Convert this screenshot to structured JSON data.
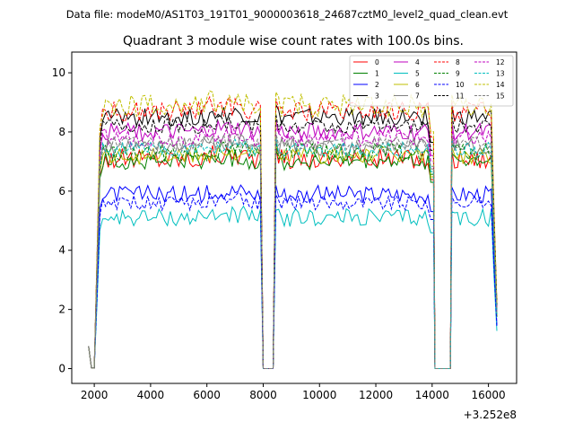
{
  "chart_data": {
    "type": "line",
    "suptitle": "Data file: modeM0/AS1T03_191T01_9000003618_24687cztM0_level2_quad_clean.evt",
    "title": "Quadrant 3 module wise count rates with 100.0s bins.",
    "xlabel": "",
    "ylabel": "",
    "x_offset_label": "+3.252e8",
    "xlim": [
      1200,
      17000
    ],
    "ylim": [
      -0.5,
      10.7
    ],
    "xticks": [
      2000,
      4000,
      6000,
      8000,
      10000,
      12000,
      14000,
      16000
    ],
    "yticks": [
      0,
      2,
      4,
      6,
      8,
      10
    ],
    "xtick_labels": [
      "2000",
      "4000",
      "6000",
      "8000",
      "10000",
      "12000",
      "14000",
      "16000"
    ],
    "ytick_labels": [
      "0",
      "2",
      "4",
      "6",
      "8",
      "10"
    ],
    "grid": false,
    "legend_position": "top-right",
    "bin_seconds": 100,
    "segments": [
      [
        1800,
        7950
      ],
      [
        8450,
        14050
      ],
      [
        14700,
        16300
      ]
    ],
    "gaps": [
      [
        8000,
        8400
      ],
      [
        14100,
        14650
      ]
    ],
    "series": [
      {
        "name": "0",
        "color": "#ff0000",
        "dash": false,
        "level": 7.1,
        "noise": 0.35
      },
      {
        "name": "1",
        "color": "#008000",
        "dash": false,
        "level": 7.0,
        "noise": 0.3
      },
      {
        "name": "2",
        "color": "#0000ff",
        "dash": false,
        "level": 5.9,
        "noise": 0.3
      },
      {
        "name": "3",
        "color": "#000000",
        "dash": false,
        "level": 8.5,
        "noise": 0.3
      },
      {
        "name": "4",
        "color": "#bf00bf",
        "dash": false,
        "level": 8.0,
        "noise": 0.3
      },
      {
        "name": "5",
        "color": "#00bfbf",
        "dash": false,
        "level": 5.1,
        "noise": 0.3
      },
      {
        "name": "6",
        "color": "#bfbf00",
        "dash": false,
        "level": 7.2,
        "noise": 0.3
      },
      {
        "name": "7",
        "color": "#808080",
        "dash": false,
        "level": 7.5,
        "noise": 0.3
      },
      {
        "name": "8",
        "color": "#ff0000",
        "dash": true,
        "level": 8.7,
        "noise": 0.35
      },
      {
        "name": "9",
        "color": "#008000",
        "dash": true,
        "level": 7.3,
        "noise": 0.3
      },
      {
        "name": "10",
        "color": "#0000ff",
        "dash": true,
        "level": 5.6,
        "noise": 0.25
      },
      {
        "name": "11",
        "color": "#000000",
        "dash": true,
        "level": 8.2,
        "noise": 0.25
      },
      {
        "name": "12",
        "color": "#bf00bf",
        "dash": true,
        "level": 7.8,
        "noise": 0.3
      },
      {
        "name": "13",
        "color": "#00bfbf",
        "dash": true,
        "level": 7.4,
        "noise": 0.25
      },
      {
        "name": "14",
        "color": "#bfbf00",
        "dash": true,
        "level": 8.9,
        "noise": 0.4
      },
      {
        "name": "15",
        "color": "#808080",
        "dash": true,
        "level": 7.6,
        "noise": 0.25
      }
    ]
  }
}
